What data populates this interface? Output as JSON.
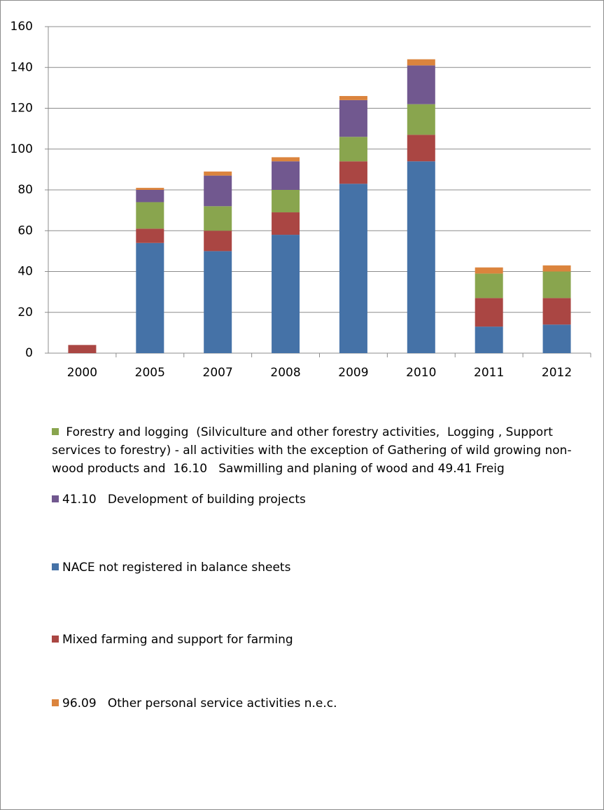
{
  "chart_data": {
    "type": "stacked_bar",
    "categories": [
      "2000",
      "2005",
      "2007",
      "2008",
      "2009",
      "2010",
      "2011",
      "2012"
    ],
    "series": [
      {
        "name": "NACE not registered in balance sheets",
        "color": "#4572a7",
        "values": [
          0,
          54,
          50,
          58,
          83,
          94,
          13,
          14
        ]
      },
      {
        "name": "Mixed farming and support for farming",
        "color": "#aa4643",
        "values": [
          4,
          7,
          10,
          11,
          11,
          13,
          14,
          13
        ]
      },
      {
        "name": " Forestry and logging  (Silviculture and other forestry activities,  Logging , Support services to forestry) - all activities with the exception of Gathering of wild growing non-wood products and  16.10   Sawmilling and planing of wood and 49.41 Freig",
        "color": "#89a54e",
        "values": [
          0,
          13,
          12,
          11,
          12,
          15,
          12,
          13
        ]
      },
      {
        "name": "41.10   Development of building projects",
        "color": "#71588f",
        "values": [
          0,
          6,
          15,
          14,
          18,
          19,
          0,
          0
        ]
      },
      {
        "name": "96.09   Other personal service activities n.e.c.",
        "color": "#db843d",
        "values": [
          0,
          1,
          2,
          2,
          2,
          3,
          3,
          3
        ]
      }
    ],
    "ylim": [
      0,
      160
    ],
    "yticks": [
      0,
      20,
      40,
      60,
      80,
      100,
      120,
      140,
      160
    ],
    "grid": true,
    "legend": "bottom"
  }
}
